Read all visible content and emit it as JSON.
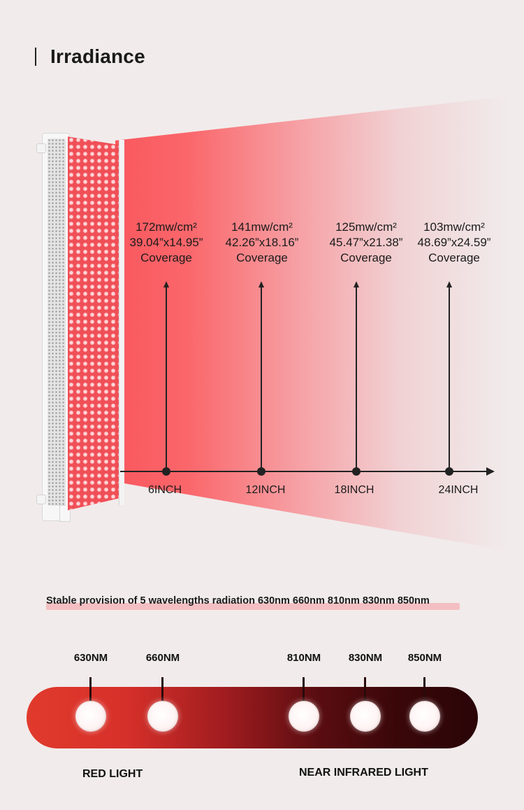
{
  "title": "Irradiance",
  "measurements": [
    {
      "irradiance": "172mw/cm²",
      "size": "39.04”x14.95”",
      "coverage": "Coverage",
      "distance": "6INCH"
    },
    {
      "irradiance": "141mw/cm²",
      "size": "42.26”x18.16”",
      "coverage": "Coverage",
      "distance": "12INCH"
    },
    {
      "irradiance": "125mw/cm²",
      "size": "45.47”x21.38”",
      "coverage": "Coverage",
      "distance": "18INCH"
    },
    {
      "irradiance": "103mw/cm²",
      "size": "48.69”x24.59”",
      "coverage": "Coverage",
      "distance": "24INCH"
    }
  ],
  "wavelengths": {
    "subtitle": "Stable provision of 5 wavelengths radiation 630nm 660nm 810nm 830nm 850nm",
    "items": [
      "630NM",
      "660NM",
      "810NM",
      "830NM",
      "850NM"
    ],
    "red_label": "RED LIGHT",
    "nir_label": "NEAR INFRARED LIGHT"
  },
  "colors": {
    "beam_red": "#f9585e",
    "spectrum_start": "#e13a2c",
    "spectrum_end": "#2a0508",
    "highlight": "#f4bfc2"
  }
}
